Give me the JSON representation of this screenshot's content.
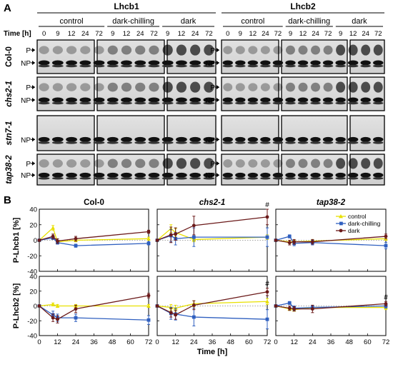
{
  "panel_a": {
    "letter": "A",
    "proteins": [
      "Lhcb1",
      "Lhcb2"
    ],
    "conditions": [
      "control",
      "dark-chilling",
      "dark"
    ],
    "time_label": "Time [h]",
    "times": [
      "0",
      "9",
      "12",
      "24",
      "72",
      "9",
      "12",
      "24",
      "72",
      "9",
      "12",
      "24",
      "72"
    ],
    "genotypes": [
      "Col-0",
      "chs2-1",
      "stn7-1",
      "tap38-2"
    ],
    "band_labels": {
      "p": "P",
      "np": "NP"
    }
  },
  "panel_b": {
    "letter": "B",
    "series_styles": [
      {
        "name": "control",
        "color": "#e8e000",
        "marker": "triangle"
      },
      {
        "name": "dark-chilling",
        "color": "#3060c0",
        "marker": "square"
      },
      {
        "name": "dark",
        "color": "#6b1a1a",
        "marker": "circle"
      }
    ],
    "hash_symbol": "#"
  },
  "chart_data": [
    {
      "type": "line",
      "title": "Col-0",
      "xlabel": "",
      "ylabel": "P-Lhcb1 [%]",
      "xlim": [
        0,
        72
      ],
      "ylim": [
        -40,
        40
      ],
      "xticks": [
        0,
        12,
        24,
        36,
        48,
        60,
        72
      ],
      "yticks": [
        -40,
        -20,
        0,
        20,
        40
      ],
      "x": [
        0,
        9,
        12,
        24,
        72
      ],
      "series": [
        {
          "name": "control",
          "values": [
            0,
            16,
            -2,
            0,
            2
          ],
          "errors": [
            0,
            3,
            2,
            2,
            2
          ]
        },
        {
          "name": "dark-chilling",
          "values": [
            0,
            3,
            -3,
            -7,
            -4
          ],
          "errors": [
            0,
            2,
            2,
            2,
            2
          ]
        },
        {
          "name": "dark",
          "values": [
            0,
            5,
            -1,
            2,
            11
          ],
          "errors": [
            0,
            3,
            3,
            3,
            2
          ]
        }
      ],
      "hash_at": []
    },
    {
      "type": "line",
      "title": "chs2-1",
      "xlabel": "",
      "ylabel": "",
      "xlim": [
        0,
        72
      ],
      "ylim": [
        -40,
        40
      ],
      "xticks": [
        0,
        12,
        24,
        36,
        48,
        60,
        72
      ],
      "yticks": [
        -40,
        -20,
        0,
        20,
        40
      ],
      "x": [
        0,
        9,
        12,
        24,
        72
      ],
      "series": [
        {
          "name": "control",
          "values": [
            0,
            15,
            10,
            1,
            4
          ],
          "errors": [
            0,
            5,
            5,
            3,
            3
          ]
        },
        {
          "name": "dark-chilling",
          "values": [
            0,
            6,
            2,
            4,
            4
          ],
          "errors": [
            0,
            8,
            8,
            12,
            12
          ]
        },
        {
          "name": "dark",
          "values": [
            0,
            7,
            8,
            19,
            30
          ],
          "errors": [
            0,
            10,
            8,
            12,
            10
          ]
        }
      ],
      "hash_at": [
        72
      ]
    },
    {
      "type": "line",
      "title": "tap38-2",
      "xlabel": "",
      "ylabel": "",
      "xlim": [
        0,
        72
      ],
      "ylim": [
        -40,
        40
      ],
      "xticks": [
        0,
        12,
        24,
        36,
        48,
        60,
        72
      ],
      "yticks": [
        -40,
        -20,
        0,
        20,
        40
      ],
      "x": [
        0,
        9,
        12,
        24,
        72
      ],
      "series": [
        {
          "name": "control",
          "values": [
            0,
            -2,
            -2,
            -1,
            2
          ],
          "errors": [
            0,
            2,
            2,
            2,
            2
          ]
        },
        {
          "name": "dark-chilling",
          "values": [
            0,
            5,
            -4,
            -3,
            -7
          ],
          "errors": [
            0,
            2,
            3,
            3,
            4
          ]
        },
        {
          "name": "dark",
          "values": [
            0,
            -3,
            -2,
            -2,
            5
          ],
          "errors": [
            0,
            3,
            3,
            3,
            3
          ]
        }
      ],
      "hash_at": []
    },
    {
      "type": "line",
      "title": "",
      "xlabel": "",
      "ylabel": "P-Lhcb2 [%]",
      "xlim": [
        0,
        72
      ],
      "ylim": [
        -40,
        40
      ],
      "xticks": [
        0,
        12,
        24,
        36,
        48,
        60,
        72
      ],
      "yticks": [
        -40,
        -20,
        0,
        20,
        40
      ],
      "x": [
        0,
        9,
        12,
        24,
        72
      ],
      "series": [
        {
          "name": "control",
          "values": [
            0,
            2,
            0,
            0,
            0
          ],
          "errors": [
            0,
            2,
            2,
            2,
            2
          ]
        },
        {
          "name": "dark-chilling",
          "values": [
            0,
            -12,
            -16,
            -16,
            -19
          ],
          "errors": [
            0,
            5,
            5,
            5,
            6
          ]
        },
        {
          "name": "dark",
          "values": [
            0,
            -16,
            -18,
            -4,
            14
          ],
          "errors": [
            0,
            5,
            5,
            5,
            3
          ]
        }
      ],
      "hash_at": []
    },
    {
      "type": "line",
      "title": "",
      "xlabel": "Time [h]",
      "ylabel": "",
      "xlim": [
        0,
        72
      ],
      "ylim": [
        -40,
        40
      ],
      "xticks": [
        0,
        12,
        24,
        36,
        48,
        60,
        72
      ],
      "yticks": [
        -40,
        -20,
        0,
        20,
        40
      ],
      "x": [
        0,
        9,
        12,
        24,
        72
      ],
      "series": [
        {
          "name": "control",
          "values": [
            0,
            -2,
            -3,
            3,
            6
          ],
          "errors": [
            0,
            4,
            4,
            4,
            4
          ]
        },
        {
          "name": "dark-chilling",
          "values": [
            0,
            -10,
            -11,
            -15,
            -18
          ],
          "errors": [
            0,
            8,
            8,
            12,
            13
          ]
        },
        {
          "name": "dark",
          "values": [
            0,
            -9,
            -12,
            1,
            19
          ],
          "errors": [
            0,
            6,
            6,
            6,
            5
          ]
        }
      ],
      "hash_at": [
        72
      ]
    },
    {
      "type": "line",
      "title": "",
      "xlabel": "",
      "ylabel": "",
      "xlim": [
        0,
        72
      ],
      "ylim": [
        -40,
        40
      ],
      "xticks": [
        0,
        12,
        24,
        36,
        48,
        60,
        72
      ],
      "yticks": [
        -40,
        -20,
        0,
        20,
        40
      ],
      "x": [
        0,
        9,
        12,
        24,
        72
      ],
      "series": [
        {
          "name": "control",
          "values": [
            0,
            -4,
            -5,
            -2,
            -2
          ],
          "errors": [
            0,
            2,
            2,
            3,
            3
          ]
        },
        {
          "name": "dark-chilling",
          "values": [
            0,
            4,
            -3,
            -2,
            0
          ],
          "errors": [
            0,
            2,
            3,
            3,
            3
          ]
        },
        {
          "name": "dark",
          "values": [
            0,
            -3,
            -4,
            -4,
            3
          ],
          "errors": [
            0,
            3,
            3,
            5,
            3
          ]
        }
      ],
      "hash_at": [
        72
      ]
    }
  ]
}
